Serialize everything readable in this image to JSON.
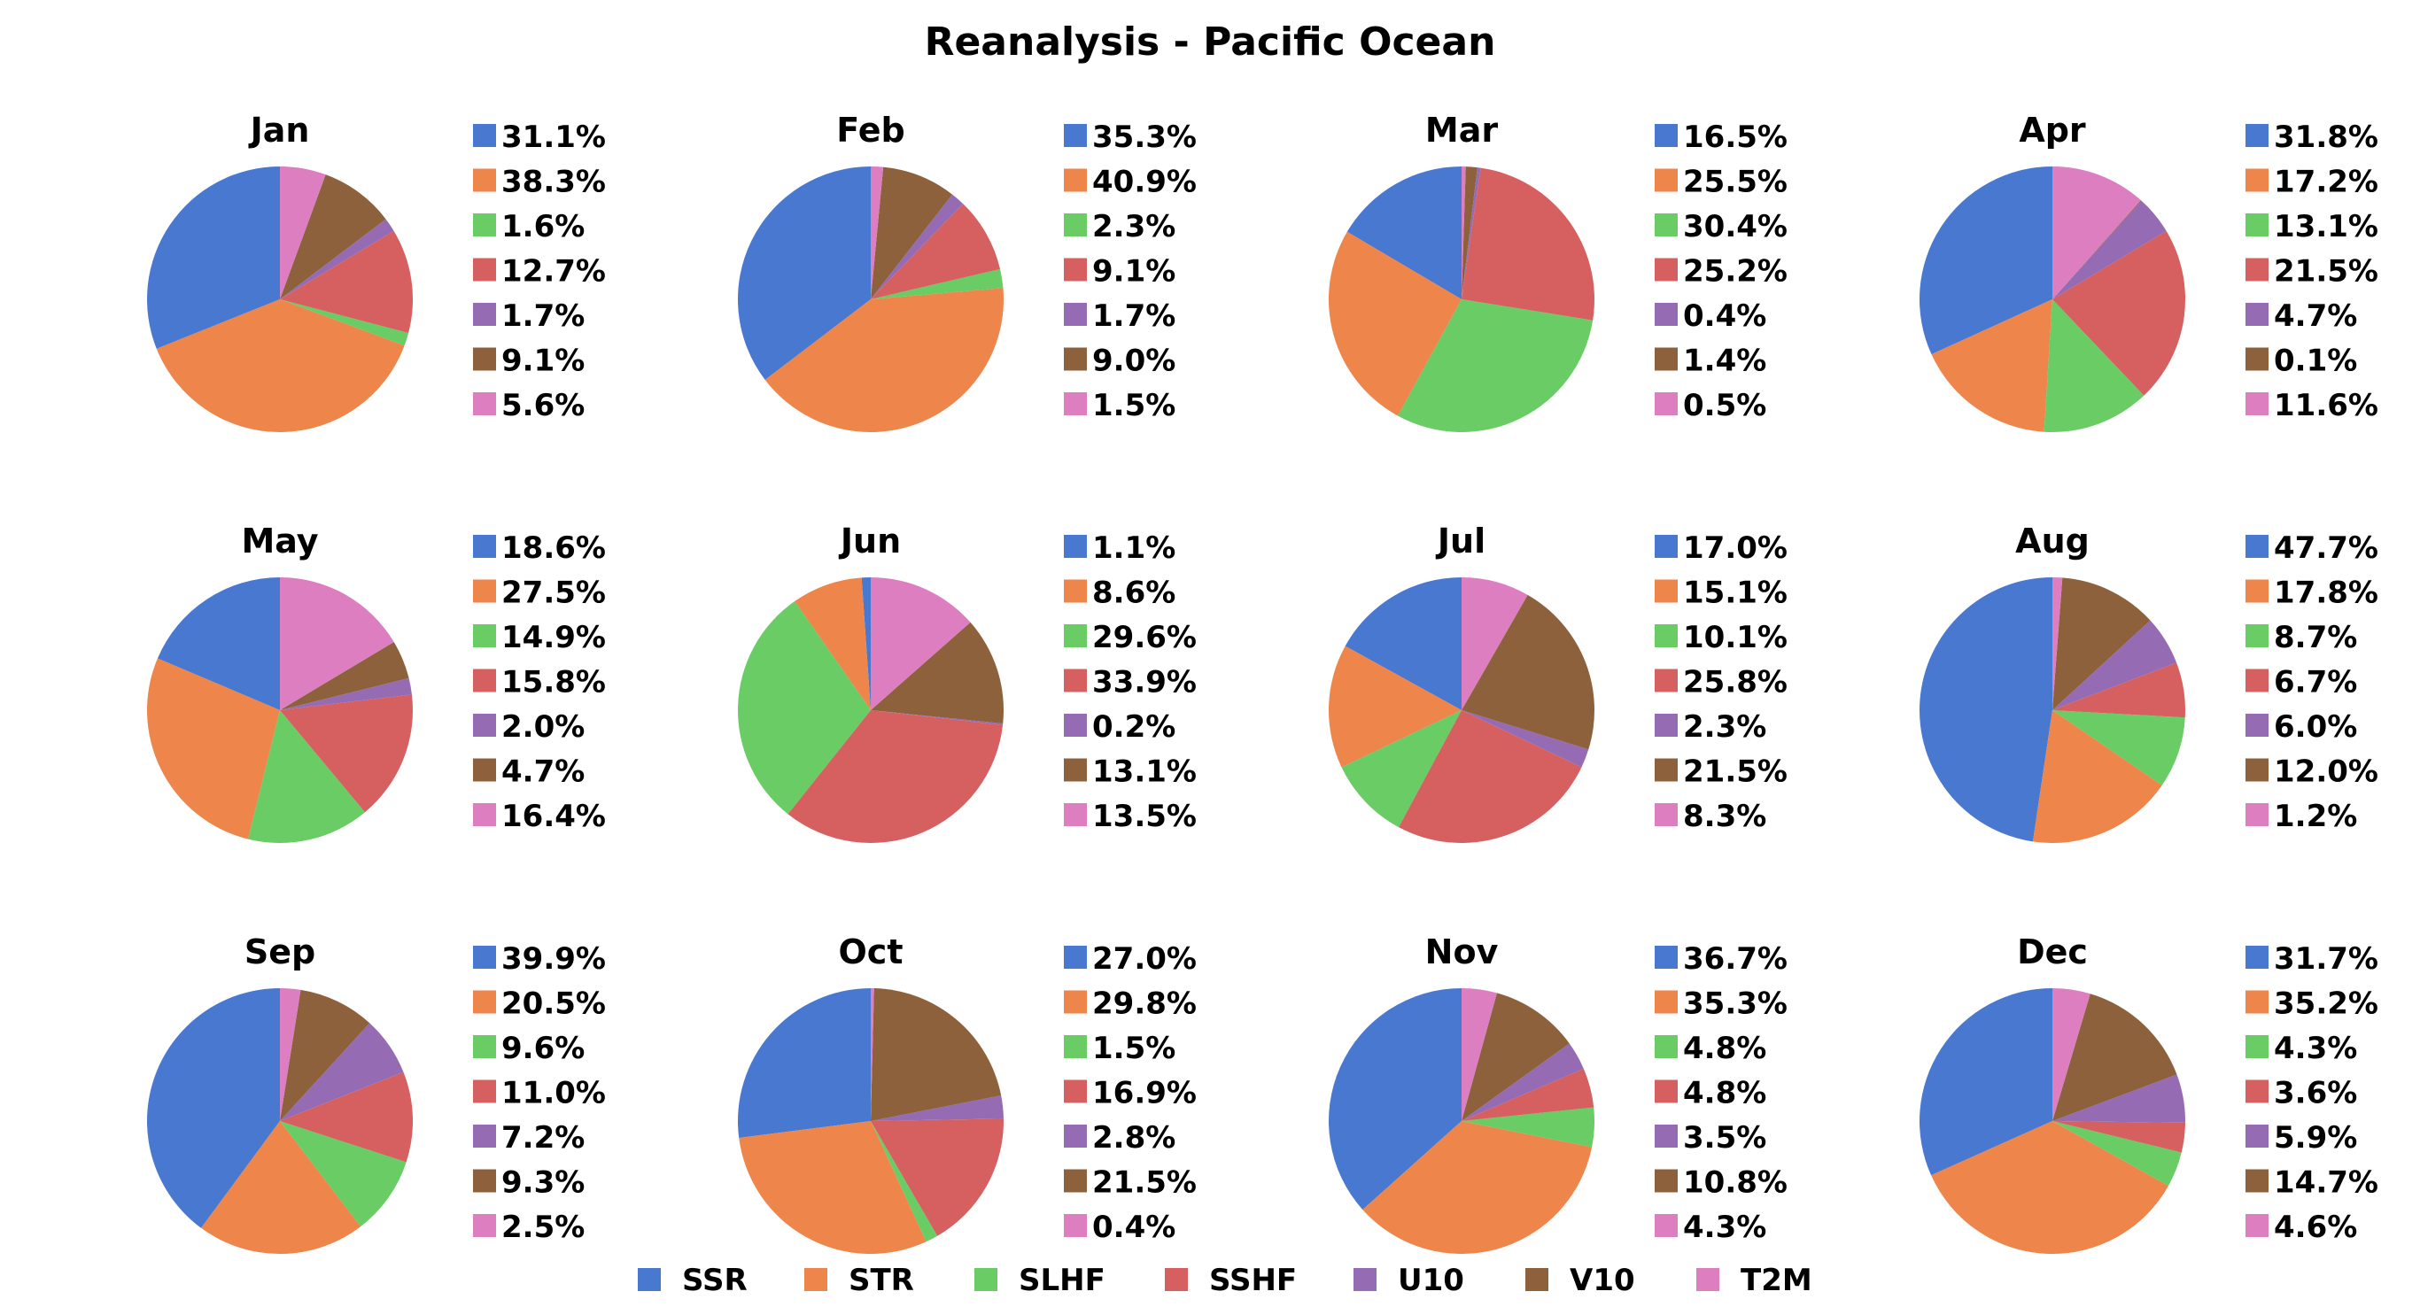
{
  "title": "Reanalysis - Pacific Ocean",
  "colors": {
    "SSR": "#4878d0",
    "STR": "#ee854a",
    "SLHF": "#6acc64",
    "SSHF": "#d65f5f",
    "U10": "#956cb4",
    "V10": "#8c613c",
    "T2M": "#dc7ec0"
  },
  "legend": [
    "SSR",
    "STR",
    "SLHF",
    "SSHF",
    "U10",
    "V10",
    "T2M"
  ],
  "chart_data": [
    {
      "type": "pie",
      "title": "Jan",
      "labels": [
        "SSR",
        "STR",
        "SLHF",
        "SSHF",
        "U10",
        "V10",
        "T2M"
      ],
      "values": [
        31.1,
        38.3,
        1.6,
        12.7,
        1.7,
        9.1,
        5.6
      ],
      "value_labels": [
        "31.1%",
        "38.3%",
        "1.6%",
        "12.7%",
        "1.7%",
        "9.1%",
        "5.6%"
      ]
    },
    {
      "type": "pie",
      "title": "Feb",
      "labels": [
        "SSR",
        "STR",
        "SLHF",
        "SSHF",
        "U10",
        "V10",
        "T2M"
      ],
      "values": [
        35.3,
        40.9,
        2.3,
        9.1,
        1.7,
        9.0,
        1.5
      ],
      "value_labels": [
        "35.3%",
        "40.9%",
        "2.3%",
        "9.1%",
        "1.7%",
        "9.0%",
        "1.5%"
      ]
    },
    {
      "type": "pie",
      "title": "Mar",
      "labels": [
        "SSR",
        "STR",
        "SLHF",
        "SSHF",
        "U10",
        "V10",
        "T2M"
      ],
      "values": [
        16.5,
        25.5,
        30.4,
        25.2,
        0.4,
        1.4,
        0.5
      ],
      "value_labels": [
        "16.5%",
        "25.5%",
        "30.4%",
        "25.2%",
        "0.4%",
        "1.4%",
        "0.5%"
      ]
    },
    {
      "type": "pie",
      "title": "Apr",
      "labels": [
        "SSR",
        "STR",
        "SLHF",
        "SSHF",
        "U10",
        "V10",
        "T2M"
      ],
      "values": [
        31.8,
        17.2,
        13.1,
        21.5,
        4.7,
        0.1,
        11.6
      ],
      "value_labels": [
        "31.8%",
        "17.2%",
        "13.1%",
        "21.5%",
        "4.7%",
        "0.1%",
        "11.6%"
      ]
    },
    {
      "type": "pie",
      "title": "May",
      "labels": [
        "SSR",
        "STR",
        "SLHF",
        "SSHF",
        "U10",
        "V10",
        "T2M"
      ],
      "values": [
        18.6,
        27.5,
        14.9,
        15.8,
        2.0,
        4.7,
        16.4
      ],
      "value_labels": [
        "18.6%",
        "27.5%",
        "14.9%",
        "15.8%",
        "2.0%",
        "4.7%",
        "16.4%"
      ]
    },
    {
      "type": "pie",
      "title": "Jun",
      "labels": [
        "SSR",
        "STR",
        "SLHF",
        "SSHF",
        "U10",
        "V10",
        "T2M"
      ],
      "values": [
        1.1,
        8.6,
        29.6,
        33.9,
        0.2,
        13.1,
        13.5
      ],
      "value_labels": [
        "1.1%",
        "8.6%",
        "29.6%",
        "33.9%",
        "0.2%",
        "13.1%",
        "13.5%"
      ]
    },
    {
      "type": "pie",
      "title": "Jul",
      "labels": [
        "SSR",
        "STR",
        "SLHF",
        "SSHF",
        "U10",
        "V10",
        "T2M"
      ],
      "values": [
        17.0,
        15.1,
        10.1,
        25.8,
        2.3,
        21.5,
        8.3
      ],
      "value_labels": [
        "17.0%",
        "15.1%",
        "10.1%",
        "25.8%",
        "2.3%",
        "21.5%",
        "8.3%"
      ]
    },
    {
      "type": "pie",
      "title": "Aug",
      "labels": [
        "SSR",
        "STR",
        "SLHF",
        "SSHF",
        "U10",
        "V10",
        "T2M"
      ],
      "values": [
        47.7,
        17.8,
        8.7,
        6.7,
        6.0,
        12.0,
        1.2
      ],
      "value_labels": [
        "47.7%",
        "17.8%",
        "8.7%",
        "6.7%",
        "6.0%",
        "12.0%",
        "1.2%"
      ]
    },
    {
      "type": "pie",
      "title": "Sep",
      "labels": [
        "SSR",
        "STR",
        "SLHF",
        "SSHF",
        "U10",
        "V10",
        "T2M"
      ],
      "values": [
        39.9,
        20.5,
        9.6,
        11.0,
        7.2,
        9.3,
        2.5
      ],
      "value_labels": [
        "39.9%",
        "20.5%",
        "9.6%",
        "11.0%",
        "7.2%",
        "9.3%",
        "2.5%"
      ]
    },
    {
      "type": "pie",
      "title": "Oct",
      "labels": [
        "SSR",
        "STR",
        "SLHF",
        "SSHF",
        "U10",
        "V10",
        "T2M"
      ],
      "values": [
        27.0,
        29.8,
        1.5,
        16.9,
        2.8,
        21.5,
        0.4
      ],
      "value_labels": [
        "27.0%",
        "29.8%",
        "1.5%",
        "16.9%",
        "2.8%",
        "21.5%",
        "0.4%"
      ]
    },
    {
      "type": "pie",
      "title": "Nov",
      "labels": [
        "SSR",
        "STR",
        "SLHF",
        "SSHF",
        "U10",
        "V10",
        "T2M"
      ],
      "values": [
        36.7,
        35.3,
        4.8,
        4.8,
        3.5,
        10.8,
        4.3
      ],
      "value_labels": [
        "36.7%",
        "35.3%",
        "4.8%",
        "4.8%",
        "3.5%",
        "10.8%",
        "4.3%"
      ]
    },
    {
      "type": "pie",
      "title": "Dec",
      "labels": [
        "SSR",
        "STR",
        "SLHF",
        "SSHF",
        "U10",
        "V10",
        "T2M"
      ],
      "values": [
        31.7,
        35.2,
        4.3,
        3.6,
        5.9,
        14.7,
        4.6
      ],
      "value_labels": [
        "31.7%",
        "35.2%",
        "4.3%",
        "3.6%",
        "5.9%",
        "14.7%",
        "4.6%"
      ]
    }
  ]
}
